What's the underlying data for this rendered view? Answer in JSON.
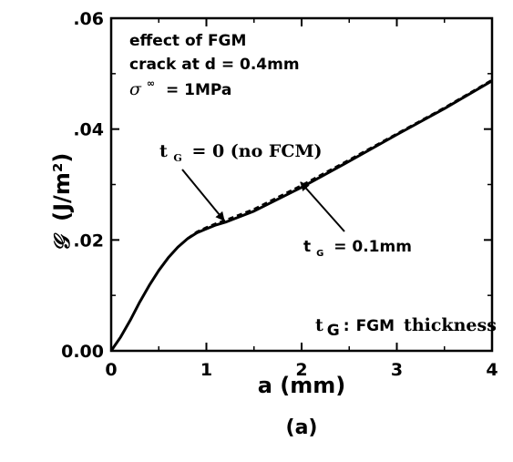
{
  "chart_data": {
    "type": "line",
    "xlabel": "a (mm)",
    "ylabel_symbol": "𝒢",
    "ylabel_unit": "(J/m²)",
    "panel_label": "(a)",
    "xlim": [
      0,
      4
    ],
    "ylim": [
      0,
      0.06
    ],
    "x_ticks": [
      {
        "value": 0,
        "label": "0"
      },
      {
        "value": 1,
        "label": "1"
      },
      {
        "value": 2,
        "label": "2"
      },
      {
        "value": 3,
        "label": "3"
      },
      {
        "value": 4,
        "label": "4"
      }
    ],
    "y_ticks": [
      {
        "value": 0,
        "label": "0.00"
      },
      {
        "value": 0.02,
        "label": ".02"
      },
      {
        "value": 0.04,
        "label": ".04"
      },
      {
        "value": 0.06,
        "label": ".06"
      }
    ],
    "annotations": {
      "line1": "effect of FGM",
      "line2": "crack at d = 0.4mm",
      "line3_sym": "σ",
      "line3_sup": "∞",
      "line3_val": "= 1MPa",
      "tg_zero_t": "t",
      "tg_zero_sub": "G",
      "tg_zero_rest": "= 0 (no FCM)",
      "tg_point1_t": "t",
      "tg_point1_sub": "G",
      "tg_point1_rest": "= 0.1mm",
      "footnote_t": "t",
      "footnote_sub": "G",
      "footnote_colon": ":",
      "footnote_fgm": "FGM",
      "footnote_rest": "thickness"
    },
    "series": [
      {
        "style": "solid",
        "x": [
          0,
          0.1,
          0.2,
          0.3,
          0.4,
          0.5,
          0.6,
          0.7,
          0.8,
          0.9,
          1.0,
          1.1,
          1.2,
          1.5,
          2.0,
          2.5,
          3.0,
          3.5,
          4.0
        ],
        "y": [
          0,
          0.0025,
          0.0055,
          0.0088,
          0.0118,
          0.0145,
          0.0168,
          0.0187,
          0.0202,
          0.0213,
          0.022,
          0.0227,
          0.0232,
          0.0252,
          0.0295,
          0.0342,
          0.039,
          0.0437,
          0.0487
        ]
      },
      {
        "style": "dashed",
        "x": [
          0,
          0.1,
          0.2,
          0.3,
          0.4,
          0.5,
          0.6,
          0.7,
          0.8,
          0.9,
          1.0,
          1.1,
          1.2,
          1.5,
          2.0,
          2.5,
          3.0,
          3.5,
          4.0
        ],
        "y": [
          0,
          0.0025,
          0.0055,
          0.0088,
          0.0118,
          0.0145,
          0.0168,
          0.0187,
          0.0203,
          0.0215,
          0.0223,
          0.023,
          0.0236,
          0.0256,
          0.0299,
          0.0345,
          0.0392,
          0.0439,
          0.0489
        ]
      }
    ]
  }
}
